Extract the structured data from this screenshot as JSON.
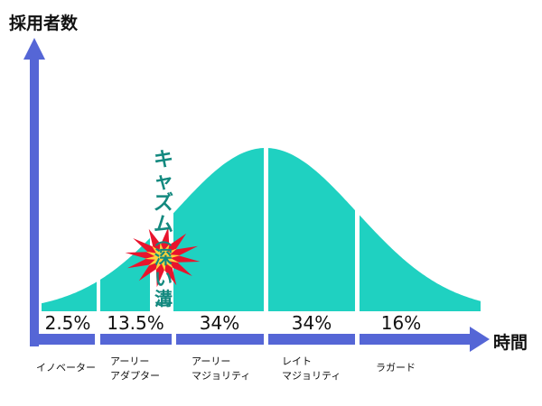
{
  "axes": {
    "y_label": "採用者数",
    "x_label": "時間"
  },
  "colors": {
    "curve_fill": "#1fd1c1",
    "axis": "#5566d6",
    "chasm_text": "#13897f",
    "burst_outer": "#e8142d",
    "burst_inner": "#ffd23a"
  },
  "chasm": {
    "title": "キャズム",
    "paren_open": "︵",
    "depth_1": "深",
    "depth_2": "い",
    "depth_3": "溝",
    "paren_close": "︶"
  },
  "segments": [
    {
      "percent": "2.5%",
      "label_line1": "イノベーター",
      "label_line2": ""
    },
    {
      "percent": "13.5%",
      "label_line1": "アーリー",
      "label_line2": "アダプター"
    },
    {
      "percent": "34%",
      "label_line1": "アーリー",
      "label_line2": "マジョリティ"
    },
    {
      "percent": "34%",
      "label_line1": "レイト",
      "label_line2": "マジョリティ"
    },
    {
      "percent": "16%",
      "label_line1": "ラガード",
      "label_line2": ""
    }
  ]
}
